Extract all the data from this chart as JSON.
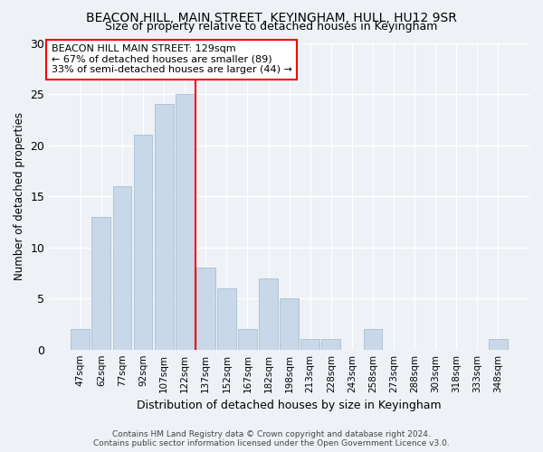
{
  "title": "BEACON HILL, MAIN STREET, KEYINGHAM, HULL, HU12 9SR",
  "subtitle": "Size of property relative to detached houses in Keyingham",
  "xlabel": "Distribution of detached houses by size in Keyingham",
  "ylabel": "Number of detached properties",
  "categories": [
    "47sqm",
    "62sqm",
    "77sqm",
    "92sqm",
    "107sqm",
    "122sqm",
    "137sqm",
    "152sqm",
    "167sqm",
    "182sqm",
    "198sqm",
    "213sqm",
    "228sqm",
    "243sqm",
    "258sqm",
    "273sqm",
    "288sqm",
    "303sqm",
    "318sqm",
    "333sqm",
    "348sqm"
  ],
  "values": [
    2,
    13,
    16,
    21,
    24,
    25,
    8,
    6,
    2,
    7,
    5,
    1,
    1,
    0,
    2,
    0,
    0,
    0,
    0,
    0,
    1
  ],
  "bar_color": "#c8d8e8",
  "bar_edge_color": "#a8bece",
  "vline_x": 5.5,
  "vline_color": "red",
  "annotation_text": "BEACON HILL MAIN STREET: 129sqm\n← 67% of detached houses are smaller (89)\n33% of semi-detached houses are larger (44) →",
  "annotation_box_color": "white",
  "annotation_box_edge_color": "red",
  "ylim": [
    0,
    30
  ],
  "yticks": [
    0,
    5,
    10,
    15,
    20,
    25,
    30
  ],
  "bg_color": "#eef2f7",
  "grid_color": "white",
  "footer": "Contains HM Land Registry data © Crown copyright and database right 2024.\nContains public sector information licensed under the Open Government Licence v3.0."
}
